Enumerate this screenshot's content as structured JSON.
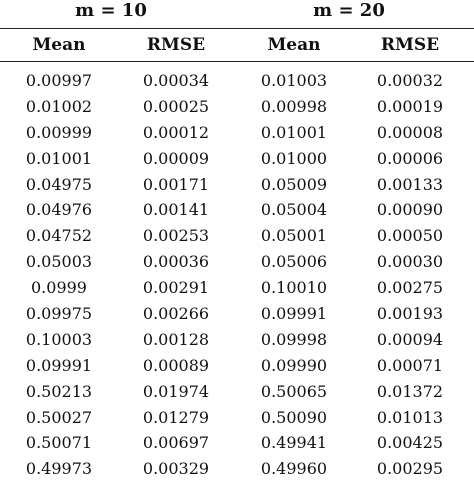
{
  "groups": [
    {
      "label": "m = 10"
    },
    {
      "label": "m = 20"
    }
  ],
  "columns": [
    "Mean",
    "RMSE",
    "Mean",
    "RMSE"
  ],
  "rows": [
    [
      "0.00997",
      "0.00034",
      "0.01003",
      "0.00032"
    ],
    [
      "0.01002",
      "0.00025",
      "0.00998",
      "0.00019"
    ],
    [
      "0.00999",
      "0.00012",
      "0.01001",
      "0.00008"
    ],
    [
      "0.01001",
      "0.00009",
      "0.01000",
      "0.00006"
    ],
    [
      "0.04975",
      "0.00171",
      "0.05009",
      "0.00133"
    ],
    [
      "0.04976",
      "0.00141",
      "0.05004",
      "0.00090"
    ],
    [
      "0.04752",
      "0.00253",
      "0.05001",
      "0.00050"
    ],
    [
      "0.05003",
      "0.00036",
      "0.05006",
      "0.00030"
    ],
    [
      "0.0999",
      "0.00291",
      "0.10010",
      "0.00275"
    ],
    [
      "0.09975",
      "0.00266",
      "0.09991",
      "0.00193"
    ],
    [
      "0.10003",
      "0.00128",
      "0.09998",
      "0.00094"
    ],
    [
      "0.09991",
      "0.00089",
      "0.09990",
      "0.00071"
    ],
    [
      "0.50213",
      "0.01974",
      "0.50065",
      "0.01372"
    ],
    [
      "0.50027",
      "0.01279",
      "0.50090",
      "0.01013"
    ],
    [
      "0.50071",
      "0.00697",
      "0.49941",
      "0.00425"
    ],
    [
      "0.49973",
      "0.00329",
      "0.49960",
      "0.00295"
    ]
  ]
}
